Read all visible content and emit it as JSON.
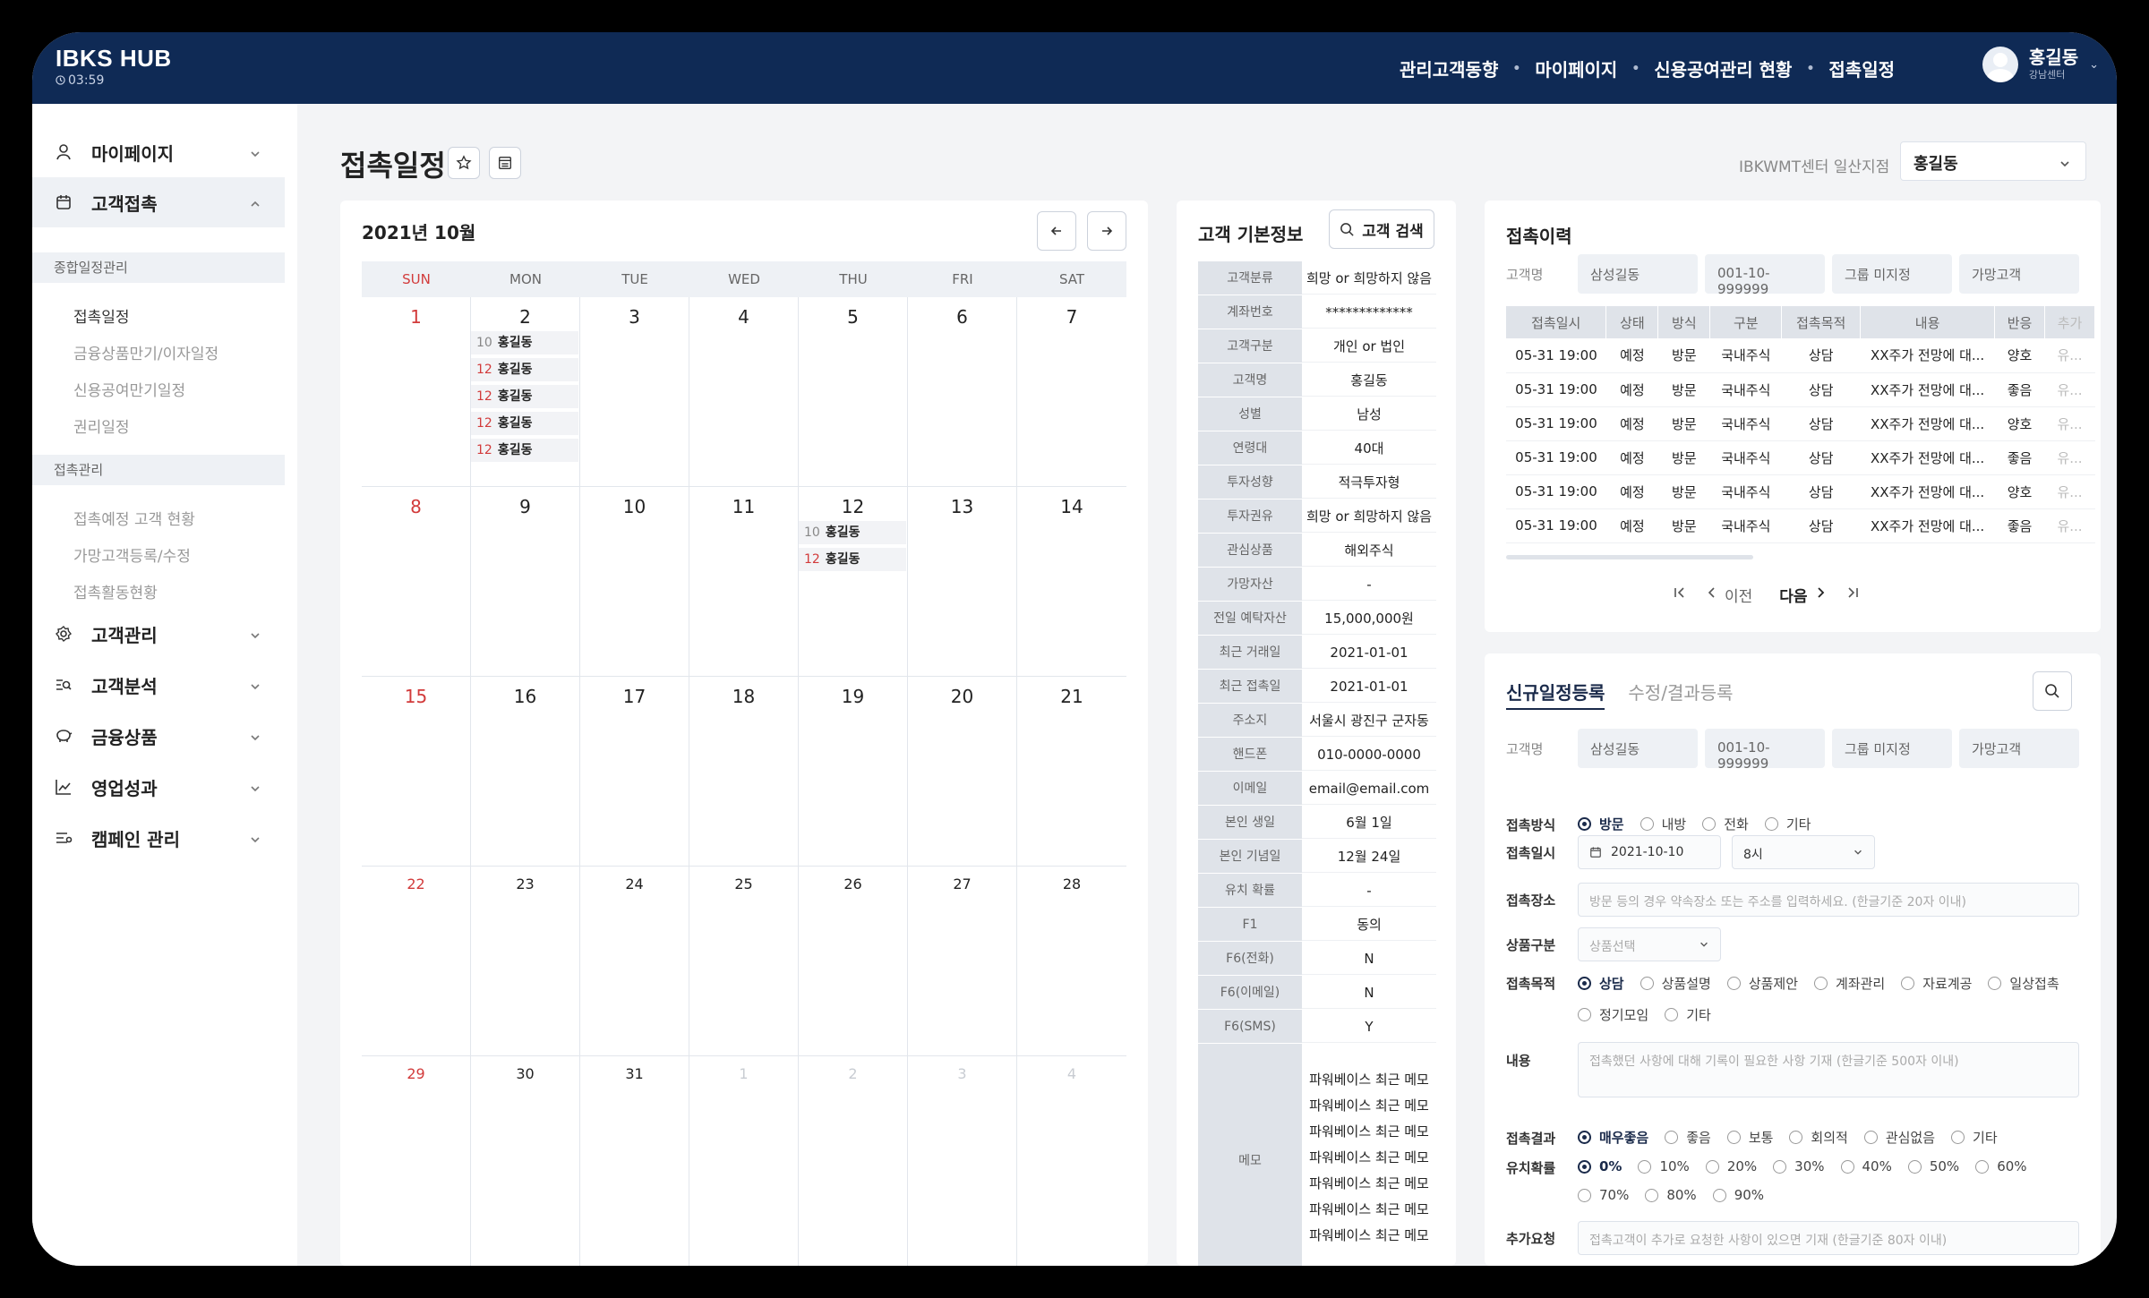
{
  "app": {
    "brand": "IBKS HUB",
    "timer": "03:59"
  },
  "topnav": [
    "관리고객동향",
    "마이페이지",
    "신용공여관리 현황",
    "접촉일정"
  ],
  "user": {
    "name": "홍길동",
    "branch": "강남센터"
  },
  "sidebar": {
    "menu": [
      "마이페이지",
      "고객접촉",
      "고객관리",
      "고객분석",
      "금융상품",
      "영업성과",
      "캠페인 관리"
    ],
    "sub1_head": "종합일정관리",
    "sub1": [
      "접촉일정",
      "금융상품만기/이자일정",
      "신용공여만기일정",
      "권리일정"
    ],
    "sub2_head": "접촉관리",
    "sub2": [
      "접촉예정 고객 현황",
      "가망고객등록/수정",
      "접촉활동현황"
    ]
  },
  "page": {
    "title": "접촉일정",
    "center_label": "IBKWMT센터 일산지점",
    "center_value": "홍길동"
  },
  "calendar": {
    "title": "2021년 10월",
    "weekdays": [
      "SUN",
      "MON",
      "TUE",
      "WED",
      "THU",
      "FRI",
      "SAT"
    ],
    "weeks": [
      [
        "1",
        "2",
        "3",
        "4",
        "5",
        "6",
        "7"
      ],
      [
        "8",
        "9",
        "10",
        "11",
        "12",
        "13",
        "14"
      ],
      [
        "15",
        "16",
        "17",
        "18",
        "19",
        "20",
        "21"
      ],
      [
        "22",
        "23",
        "24",
        "25",
        "26",
        "27",
        "28"
      ],
      [
        "29",
        "30",
        "31",
        "1",
        "2",
        "3",
        "4"
      ]
    ],
    "events_oct2": [
      {
        "t": "10",
        "n": "홍길동"
      },
      {
        "t": "12",
        "n": "홍길동"
      },
      {
        "t": "12",
        "n": "홍길동"
      },
      {
        "t": "12",
        "n": "홍길동"
      },
      {
        "t": "12",
        "n": "홍길동"
      }
    ],
    "events_oct12": [
      {
        "t": "10",
        "n": "홍길동"
      },
      {
        "t": "12",
        "n": "홍길동"
      }
    ]
  },
  "info": {
    "title": "고객 기본정보",
    "search": "고객 검색",
    "rows": [
      [
        "고객분류",
        "희망 or 희망하지 않음"
      ],
      [
        "계좌번호",
        "*************"
      ],
      [
        "고객구분",
        "개인 or 법인"
      ],
      [
        "고객명",
        "홍길동"
      ],
      [
        "성별",
        "남성"
      ],
      [
        "연령대",
        "40대"
      ],
      [
        "투자성향",
        "적극투자형"
      ],
      [
        "투자권유",
        "희망 or 희망하지 않음"
      ],
      [
        "관심상품",
        "해외주식"
      ],
      [
        "가망자산",
        "-"
      ],
      [
        "전일 예탁자산",
        "15,000,000원"
      ],
      [
        "최근 거래일",
        "2021-01-01"
      ],
      [
        "최근 접촉일",
        "2021-01-01"
      ],
      [
        "주소지",
        "서울시 광진구 군자동"
      ],
      [
        "핸드폰",
        "010-0000-0000"
      ],
      [
        "이메일",
        "email@email.com"
      ],
      [
        "본인 생일",
        "6월 1일"
      ],
      [
        "본인 기념일",
        "12월 24일"
      ],
      [
        "유치 확률",
        "-"
      ],
      [
        "F1",
        "동의"
      ],
      [
        "F6(전화)",
        "N"
      ],
      [
        "F6(이메일)",
        "N"
      ],
      [
        "F6(SMS)",
        "Y"
      ]
    ],
    "memo_label": "메모",
    "memo": [
      "파워베이스 최근 메모",
      "파워베이스 최근 메모",
      "파워베이스 최근 메모",
      "파워베이스 최근 메모",
      "파워베이스 최근 메모",
      "파워베이스 최근 메모",
      "파워베이스 최근 메모"
    ]
  },
  "history": {
    "title": "접촉이력",
    "filter_label": "고객명",
    "filters": [
      "삼성길동",
      "001-10-999999",
      "그룹 미지정",
      "가망고객"
    ],
    "headers": [
      "접촉일시",
      "상태",
      "방식",
      "구분",
      "접촉목적",
      "내용",
      "반응",
      "추가"
    ],
    "rows": [
      [
        "05-31 19:00",
        "예정",
        "방문",
        "국내주식",
        "상담",
        "XX주가 전망에 대...",
        "양호",
        "유..."
      ],
      [
        "05-31 19:00",
        "예정",
        "방문",
        "국내주식",
        "상담",
        "XX주가 전망에 대...",
        "좋음",
        "유..."
      ],
      [
        "05-31 19:00",
        "예정",
        "방문",
        "국내주식",
        "상담",
        "XX주가 전망에 대...",
        "양호",
        "유..."
      ],
      [
        "05-31 19:00",
        "예정",
        "방문",
        "국내주식",
        "상담",
        "XX주가 전망에 대...",
        "좋음",
        "유..."
      ],
      [
        "05-31 19:00",
        "예정",
        "방문",
        "국내주식",
        "상담",
        "XX주가 전망에 대...",
        "양호",
        "유..."
      ],
      [
        "05-31 19:00",
        "예정",
        "방문",
        "국내주식",
        "상담",
        "XX주가 전망에 대...",
        "좋음",
        "유..."
      ]
    ],
    "prev": "이전",
    "next": "다음"
  },
  "form": {
    "tab_new": "신규일정등록",
    "tab_edit": "수정/결과등록",
    "customer_label": "고객명",
    "customer": [
      "삼성길동",
      "001-10-999999",
      "그룹 미지정",
      "가망고객"
    ],
    "method_label": "접촉방식",
    "method": [
      "방문",
      "내방",
      "전화",
      "기타"
    ],
    "date_label": "접촉일시",
    "date": "2021-10-10",
    "time": "8시",
    "place_label": "접촉장소",
    "place_ph": "방문 등의 경우 약속장소 또는 주소를 입력하세요. (한글기준 20자 이내)",
    "product_label": "상품구분",
    "product_ph": "상품선택",
    "purpose_label": "접촉목적",
    "purpose": [
      "상담",
      "상품설명",
      "상품제안",
      "계좌관리",
      "자료계공",
      "일상접촉",
      "정기모임",
      "기타"
    ],
    "content_label": "내용",
    "content_ph": "접촉했던 사항에 대해 기록이 필요한 사항 기재 (한글기준 500자 이내)",
    "result_label": "접촉결과",
    "result": [
      "매우좋음",
      "좋음",
      "보통",
      "회의적",
      "관심없음",
      "기타"
    ],
    "prob_label": "유치확률",
    "prob": [
      "0%",
      "10%",
      "20%",
      "30%",
      "40%",
      "50%",
      "60%",
      "70%",
      "80%",
      "90%"
    ],
    "extra_label": "추가요청",
    "extra_ph": "접촉고객이 추가로 요청한 사항이 있으면 기재 (한글기준 80자 이내)"
  },
  "colors": {
    "navy": "#0f2a55",
    "sunday": "#d23b3b"
  }
}
